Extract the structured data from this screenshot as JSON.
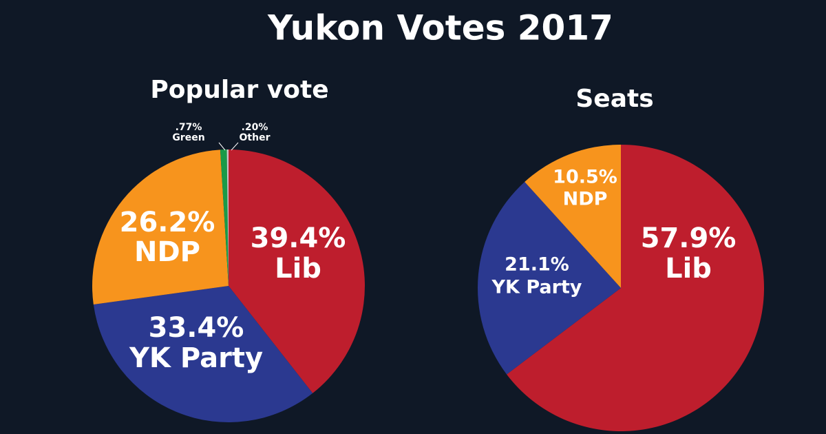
{
  "title": "Yukon Votes 2017",
  "chart_data": [
    {
      "type": "pie",
      "title": "Popular vote",
      "categories": [
        "Lib",
        "YK Party",
        "NDP",
        "Green",
        "Other"
      ],
      "values": [
        39.4,
        33.4,
        26.2,
        0.77,
        0.2
      ],
      "value_labels": [
        "39.4%",
        "33.4%",
        "26.2%",
        ".77%",
        ".20%"
      ],
      "colors": [
        "#be1e2d",
        "#2b3990",
        "#f7941d",
        "#1a9a48",
        "#c8c8c8"
      ]
    },
    {
      "type": "pie",
      "title": "Seats",
      "categories": [
        "Lib",
        "YK Party",
        "NDP"
      ],
      "values": [
        57.9,
        21.1,
        10.5
      ],
      "value_labels": [
        "57.9%",
        "21.1%",
        "10.5%"
      ],
      "colors": [
        "#be1e2d",
        "#2b3990",
        "#f7941d"
      ]
    }
  ]
}
